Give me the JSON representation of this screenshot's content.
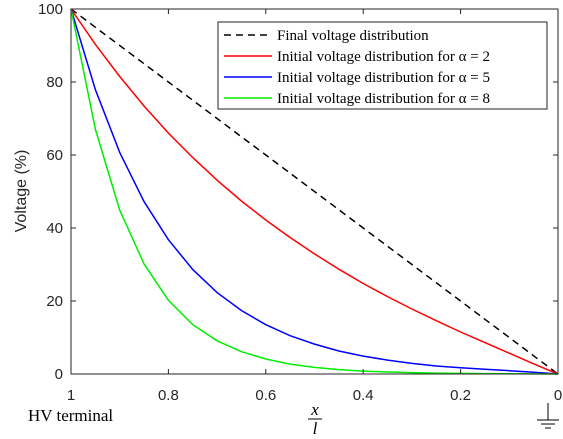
{
  "chart_data": {
    "type": "line",
    "title": "",
    "ylabel": "Voltage (%)",
    "xlabel_fraction": {
      "numerator": "x",
      "denominator": "l"
    },
    "x_end_labels": {
      "left": "HV terminal"
    },
    "ground_symbol": "ground-icon",
    "xlim": [
      1,
      0
    ],
    "ylim": [
      0,
      100
    ],
    "x_reversed": true,
    "x_ticks": [
      1,
      0.8,
      0.6,
      0.4,
      0.2,
      0
    ],
    "x_tick_labels": [
      "1",
      "0.8",
      "0.6",
      "0.4",
      "0.2",
      "0"
    ],
    "y_ticks": [
      0,
      20,
      40,
      60,
      80,
      100
    ],
    "y_tick_labels": [
      "0",
      "20",
      "40",
      "60",
      "80",
      "100"
    ],
    "grid": false,
    "legend_position": "top-right",
    "x": [
      1,
      0.95,
      0.9,
      0.85,
      0.8,
      0.75,
      0.7,
      0.65,
      0.6,
      0.55,
      0.5,
      0.45,
      0.4,
      0.35,
      0.3,
      0.25,
      0.2,
      0.15,
      0.1,
      0.05,
      0
    ],
    "series": [
      {
        "name": "Final voltage distribution",
        "style": "dashed",
        "color": "#000000",
        "values": [
          100,
          95,
          90,
          85,
          80,
          75,
          70,
          65,
          60,
          55,
          50,
          45,
          40,
          35,
          30,
          25,
          20,
          15,
          10,
          5,
          0
        ]
      },
      {
        "name": "Initial voltage distribution for α = 2",
        "style": "solid",
        "color": "#ff0000",
        "values": [
          100,
          90.3,
          81.5,
          73.4,
          66.0,
          59.3,
          53.1,
          47.4,
          42.2,
          37.4,
          32.9,
          28.7,
          24.8,
          21.2,
          17.8,
          14.6,
          11.5,
          8.6,
          5.7,
          2.8,
          0
        ]
      },
      {
        "name": "Initial voltage distribution for α = 5",
        "style": "solid",
        "color": "#0000ff",
        "values": [
          100,
          77.9,
          60.7,
          47.2,
          36.8,
          28.6,
          22.3,
          17.4,
          13.5,
          10.5,
          8.2,
          6.3,
          4.9,
          3.8,
          2.9,
          2.2,
          1.7,
          1.3,
          0.9,
          0.5,
          0
        ]
      },
      {
        "name": "Initial voltage distribution for α = 8",
        "style": "solid",
        "color": "#00ee00",
        "values": [
          100,
          67.0,
          44.9,
          30.1,
          20.2,
          13.5,
          9.1,
          6.1,
          4.1,
          2.7,
          1.8,
          1.2,
          0.8,
          0.55,
          0.37,
          0.25,
          0.16,
          0.1,
          0.06,
          0.03,
          0
        ]
      }
    ]
  }
}
